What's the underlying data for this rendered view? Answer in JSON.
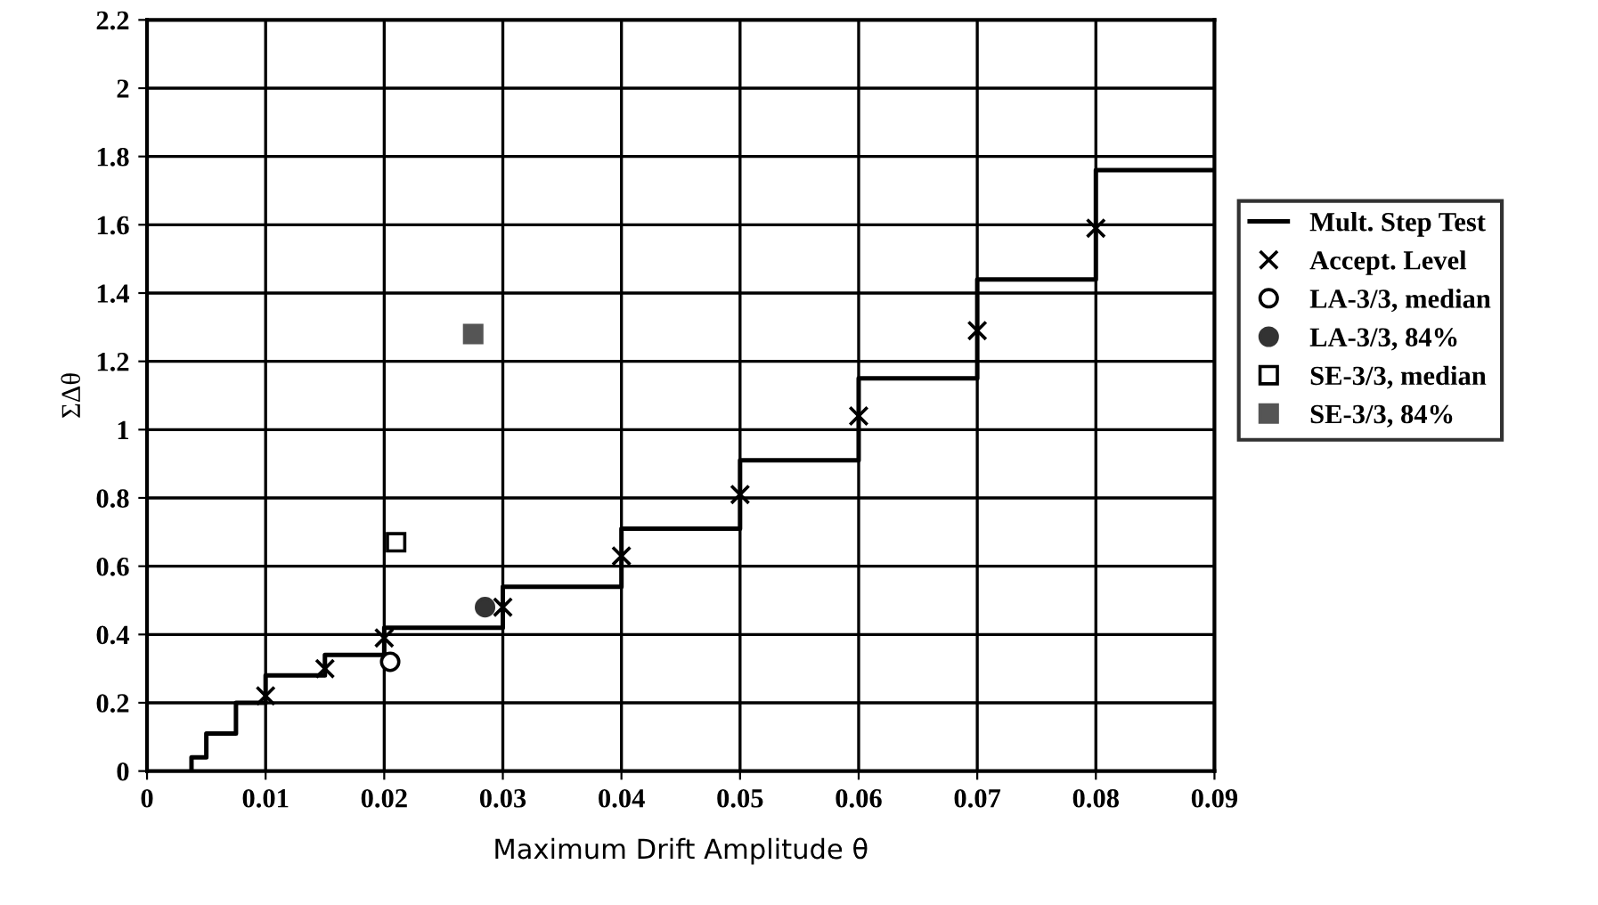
{
  "chart_data": {
    "type": "scatter",
    "xlabel": "Maximum Drift Amplitude θ",
    "ylabel": "ΣΔθ",
    "xlim": [
      0,
      0.09
    ],
    "xticks": [
      0,
      0.01,
      0.02,
      0.03,
      0.04,
      0.05,
      0.06,
      0.07,
      0.08,
      0.09
    ],
    "ylim": [
      0,
      2.2
    ],
    "yticks": [
      0,
      0.2,
      0.4,
      0.6,
      0.8,
      1,
      1.2,
      1.4,
      1.6,
      1.8,
      2,
      2.2
    ],
    "grid": true,
    "legend": "right",
    "series": [
      {
        "name": "Mult. Step Test",
        "type": "step",
        "color": "#000000",
        "marker": "none",
        "x": [
          0.00375,
          0.00375,
          0.005,
          0.0075,
          0.01,
          0.015,
          0.02,
          0.03,
          0.04,
          0.05,
          0.06,
          0.07,
          0.08,
          0.09
        ],
        "values": [
          0,
          0.04,
          0.11,
          0.2,
          0.28,
          0.34,
          0.42,
          0.54,
          0.71,
          0.91,
          1.15,
          1.44,
          1.76,
          1.76
        ]
      },
      {
        "name": "Accept. Level",
        "color": "#000000",
        "marker": "cross",
        "x": [
          0.01,
          0.015,
          0.02,
          0.03,
          0.04,
          0.05,
          0.06,
          0.07,
          0.08
        ],
        "values": [
          0.22,
          0.3,
          0.39,
          0.48,
          0.63,
          0.81,
          1.04,
          1.29,
          1.59
        ]
      },
      {
        "name": "LA-3/3, median",
        "color": "#ffffff",
        "marker": "circle",
        "x": [
          0.0205
        ],
        "values": [
          0.32
        ]
      },
      {
        "name": "LA-3/3, 84%",
        "color": "#333333",
        "marker": "circle",
        "x": [
          0.0285
        ],
        "values": [
          0.48
        ]
      },
      {
        "name": "SE-3/3, median",
        "color": "#ffffff",
        "marker": "square",
        "x": [
          0.021
        ],
        "values": [
          0.67
        ]
      },
      {
        "name": "SE-3/3, 84%",
        "color": "#555555",
        "marker": "square",
        "x": [
          0.0275
        ],
        "values": [
          1.28
        ]
      }
    ]
  }
}
